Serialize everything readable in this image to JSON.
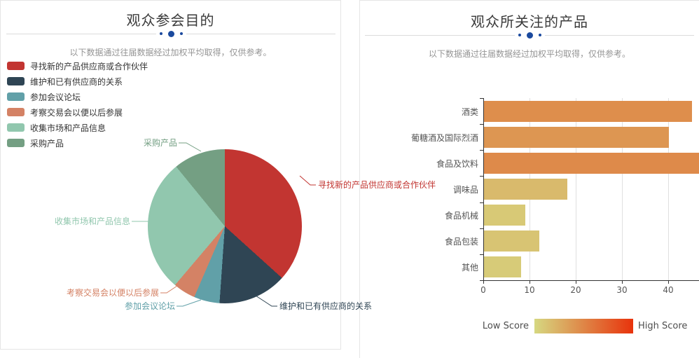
{
  "accent_dot_color": "#1b4a9e",
  "left_panel": {
    "title": "观众参会目的",
    "subtitle": "以下数据通过往届数据经过加权平均取得，仅供参考。"
  },
  "right_panel": {
    "title": "观众所关注的产品",
    "subtitle": "以下数据通过往届数据经过加权平均取得，仅供参考。"
  },
  "chart_data": [
    {
      "type": "pie",
      "title": "观众参会目的",
      "legend_position": "top-left",
      "series": [
        {
          "name": "寻找新的产品供应商或合作伙伴",
          "value": 36.7,
          "color": "#c23531"
        },
        {
          "name": "维护和已有供应商的关系",
          "value": 14.4,
          "color": "#2f4554"
        },
        {
          "name": "参加会议论坛",
          "value": 5.4,
          "color": "#61a0a8"
        },
        {
          "name": "考察交易会以便以后参展",
          "value": 4.7,
          "color": "#d48265"
        },
        {
          "name": "收集市场和产品信息",
          "value": 27.9,
          "color": "#91c7ae"
        },
        {
          "name": "采购产品",
          "value": 10.9,
          "color": "#749f83"
        }
      ]
    },
    {
      "type": "bar",
      "title": "观众所关注的产品",
      "orientation": "horizontal",
      "categories": [
        "酒类",
        "葡糖酒及国际烈酒",
        "食品及饮料",
        "调味品",
        "食品机械",
        "食品包装",
        "其他"
      ],
      "values": [
        45,
        40,
        47,
        18,
        9,
        12,
        8
      ],
      "x_ticks": [
        0,
        10,
        20,
        30,
        40
      ],
      "xlim_visible": [
        0,
        46.7
      ],
      "grid": true,
      "note": "食品及饮料 bar is clipped at the right edge of the panel",
      "visual_map": {
        "low_label": "Low Score",
        "high_label": "High Score",
        "range": [
          0,
          100
        ],
        "low_color": "#d6d881",
        "high_color": "#e8330c"
      }
    }
  ]
}
